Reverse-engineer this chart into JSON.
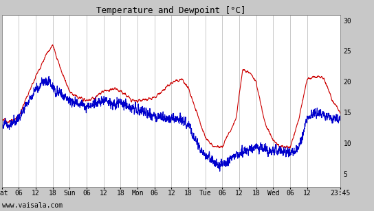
{
  "title": "Temperature and Dewpoint [°C]",
  "ylabel_right_ticks": [
    5,
    10,
    15,
    20,
    25,
    30
  ],
  "ylim": [
    3,
    31
  ],
  "x_tick_labels": [
    "Sat",
    "06",
    "12",
    "18",
    "Sun",
    "06",
    "12",
    "18",
    "Mon",
    "06",
    "12",
    "18",
    "Tue",
    "06",
    "12",
    "18",
    "Wed",
    "06",
    "12",
    "23:45"
  ],
  "background_color": "#c8c8c8",
  "plot_bg_color": "#ffffff",
  "grid_color": "#c8c8c8",
  "temp_color": "#cc0000",
  "dew_color": "#0000cc",
  "watermark": "www.vaisala.com",
  "title_fontsize": 9,
  "tick_fontsize": 7,
  "watermark_fontsize": 7,
  "n_points": 2000,
  "total_days": 4.989583
}
